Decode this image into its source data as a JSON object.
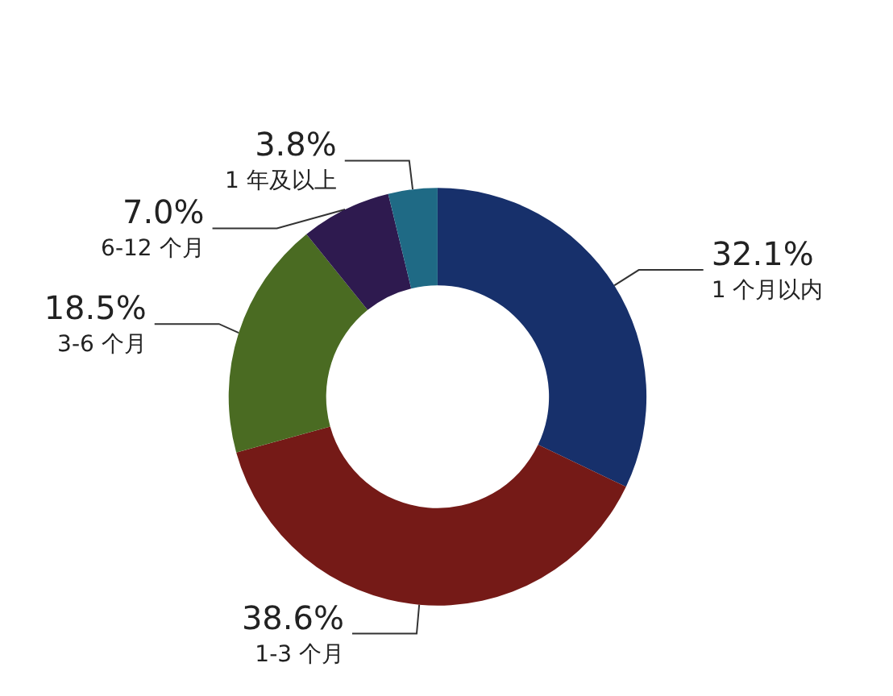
{
  "chart_data": {
    "type": "donut",
    "categories": [
      "1 个月以内",
      "1-3 个月",
      "3-6 个月",
      "6-12 个月",
      "1 年及以上"
    ],
    "values": [
      32.1,
      38.6,
      18.5,
      7.0,
      3.8
    ],
    "value_labels": [
      "32.1%",
      "38.6%",
      "18.5%",
      "7.0%",
      "3.8%"
    ],
    "colors": [
      "#17306b",
      "#751a17",
      "#4a6b22",
      "#2e1a4f",
      "#1f6a85"
    ],
    "legend": false
  }
}
